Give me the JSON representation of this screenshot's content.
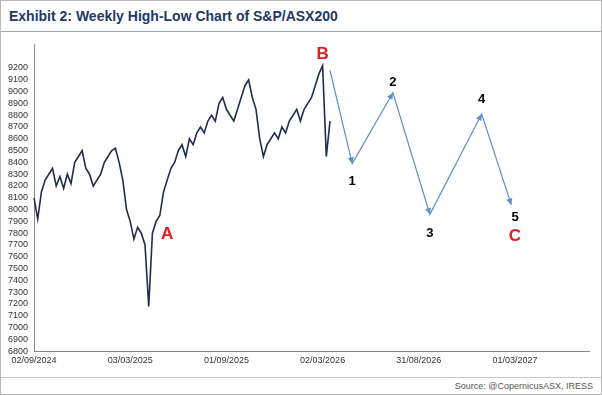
{
  "chart_data": {
    "type": "line",
    "title": "Exhibit 2: Weekly High-Low Chart of S&P/ASX200",
    "source": "Source: @CopernicusASX, IRESS",
    "categories": [
      "02/09/2024",
      null,
      null,
      null,
      null,
      null,
      null,
      null,
      null,
      null,
      null,
      null,
      null,
      null,
      null,
      null,
      null,
      null,
      null,
      null,
      null,
      null,
      null,
      null,
      null,
      null,
      "03/03/2025",
      null,
      null,
      null,
      null,
      null,
      null,
      null,
      null,
      null,
      null,
      null,
      null,
      null,
      null,
      null,
      null,
      null,
      null,
      null,
      null,
      null,
      null,
      null,
      null,
      null,
      "01/09/2025",
      null,
      null,
      null,
      null,
      null,
      null,
      null,
      null,
      null,
      null,
      null,
      null,
      null,
      null,
      null,
      null,
      null,
      null,
      null,
      null,
      null,
      null,
      null,
      null,
      null,
      "02/03/2026",
      null,
      null,
      null,
      null,
      null,
      null,
      null,
      null,
      null,
      null,
      null,
      null,
      null,
      null,
      null,
      null,
      null,
      null,
      null,
      null,
      null,
      null,
      null,
      null,
      null,
      "31/08/2026",
      null,
      null,
      null,
      null,
      null,
      null,
      null,
      null,
      null,
      null,
      null,
      null,
      null,
      null,
      null,
      null,
      null,
      null,
      null,
      null,
      null,
      null,
      null,
      null,
      null,
      "01/03/2027",
      null,
      null,
      null,
      null,
      null,
      null,
      null,
      null,
      null,
      null,
      null,
      null,
      null,
      null,
      null,
      null,
      null,
      null,
      null,
      null
    ],
    "series": [
      {
        "color": "#1f2d4e",
        "line_style": "solid",
        "values": [
          8100,
          7920,
          8150,
          8250,
          8300,
          8350,
          8200,
          8280,
          8180,
          8300,
          8220,
          8400,
          8450,
          8500,
          8350,
          8300,
          8200,
          8250,
          8300,
          8400,
          8450,
          8500,
          8520,
          8400,
          8250,
          8000,
          7900,
          7750,
          7850,
          7800,
          7700,
          7180,
          7800,
          7900,
          7950,
          8150,
          8250,
          8350,
          8400,
          8500,
          8550,
          8450,
          8600,
          8550,
          8650,
          8700,
          8650,
          8750,
          8800,
          8750,
          8900,
          8950,
          8850,
          8800,
          8750,
          8850,
          8950,
          9050,
          9100,
          8950,
          8850,
          8600,
          8450,
          8550,
          8600,
          8650,
          8600,
          8700,
          8650,
          8750,
          8800,
          8850,
          8750,
          8850,
          8900,
          8950,
          9050,
          9150,
          9220,
          8450,
          8750,
          null,
          null,
          null,
          null,
          null,
          null,
          null,
          null,
          null,
          null,
          null,
          null,
          null,
          null,
          null,
          null,
          null,
          null,
          null,
          null,
          null,
          null,
          null,
          null,
          null,
          null,
          null,
          null,
          null,
          null,
          null,
          null,
          null,
          null,
          null,
          null,
          null,
          null,
          null,
          null,
          null,
          null,
          null,
          null,
          null,
          null,
          null,
          null,
          null,
          null,
          null,
          null,
          null,
          null,
          null,
          null,
          null,
          null,
          null,
          null,
          null,
          null,
          null,
          null,
          null,
          null,
          null,
          null,
          null,
          null
        ]
      },
      {
        "color": "#5b8fc7",
        "line_style": "arrow",
        "values": [
          null,
          null,
          null,
          null,
          null,
          null,
          null,
          null,
          null,
          null,
          null,
          null,
          null,
          null,
          null,
          null,
          null,
          null,
          null,
          null,
          null,
          null,
          null,
          null,
          null,
          null,
          null,
          null,
          null,
          null,
          null,
          null,
          null,
          null,
          null,
          null,
          null,
          null,
          null,
          null,
          null,
          null,
          null,
          null,
          null,
          null,
          null,
          null,
          null,
          null,
          null,
          null,
          null,
          null,
          null,
          null,
          null,
          null,
          null,
          null,
          null,
          null,
          null,
          null,
          null,
          null,
          null,
          null,
          null,
          null,
          null,
          null,
          null,
          null,
          null,
          null,
          null,
          null,
          null,
          null,
          9180,
          null,
          null,
          null,
          null,
          null,
          8390,
          null,
          null,
          null,
          null,
          null,
          null,
          null,
          null,
          null,
          null,
          8990,
          null,
          null,
          null,
          null,
          null,
          null,
          null,
          null,
          null,
          7960,
          null,
          null,
          null,
          null,
          null,
          null,
          null,
          null,
          null,
          null,
          null,
          null,
          null,
          8810,
          null,
          null,
          null,
          null,
          null,
          null,
          null,
          8040,
          null,
          null,
          null,
          null,
          null,
          null,
          null,
          null,
          null,
          null,
          null,
          null,
          null,
          null,
          null,
          null,
          null,
          null,
          null,
          null,
          null
        ]
      }
    ],
    "annotations": [
      {
        "text": "A",
        "x": 36,
        "y": 7790,
        "color": "#e02020"
      },
      {
        "text": "B",
        "x": 78,
        "y": 9320,
        "color": "#e02020"
      },
      {
        "text": "1",
        "x": 86,
        "y": 8240,
        "color": "#000000"
      },
      {
        "text": "2",
        "x": 97,
        "y": 9080,
        "color": "#000000"
      },
      {
        "text": "3",
        "x": 107,
        "y": 7800,
        "color": "#000000"
      },
      {
        "text": "4",
        "x": 121,
        "y": 8930,
        "color": "#000000"
      },
      {
        "text": "5",
        "x": 130,
        "y": 7930,
        "color": "#000000"
      },
      {
        "text": "C",
        "x": 130,
        "y": 7770,
        "color": "#e02020"
      }
    ],
    "ylim": [
      6800,
      9400
    ],
    "yticks": [
      6800,
      6900,
      7000,
      7100,
      7200,
      7300,
      7400,
      7500,
      7600,
      7700,
      7800,
      7900,
      8000,
      8100,
      8200,
      8300,
      8400,
      8500,
      8600,
      8700,
      8800,
      8900,
      9000,
      9100,
      9200
    ],
    "grid": false
  }
}
